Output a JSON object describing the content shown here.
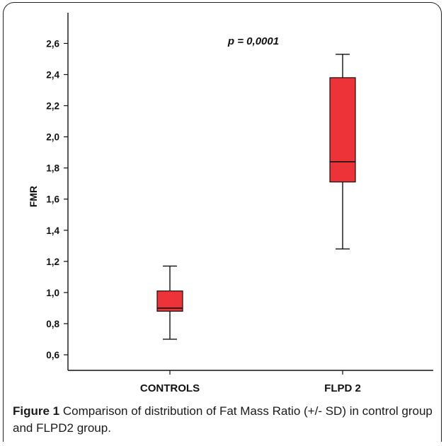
{
  "chart_data": {
    "type": "box",
    "ylabel": "FMR",
    "ylim": [
      0.5,
      2.72
    ],
    "yticks": [
      "0,6",
      "0,8",
      "1,0",
      "1,2",
      "1,4",
      "1,6",
      "1,8",
      "2,0",
      "2,2",
      "2,4",
      "2,6"
    ],
    "ytick_values": [
      0.6,
      0.8,
      1.0,
      1.2,
      1.4,
      1.6,
      1.8,
      2.0,
      2.2,
      2.4,
      2.6
    ],
    "categories": [
      "CONTROLS",
      "FLPD 2"
    ],
    "boxes": [
      {
        "category": "CONTROLS",
        "whisker_low": 0.7,
        "q1": 0.88,
        "median": 0.9,
        "q3": 1.01,
        "whisker_high": 1.17
      },
      {
        "category": "FLPD 2",
        "whisker_low": 1.28,
        "q1": 1.71,
        "median": 1.84,
        "q3": 2.38,
        "whisker_high": 2.53
      }
    ],
    "annotation": "p = 0,0001",
    "box_color": "#ee3338"
  },
  "caption": {
    "label": "Figure 1",
    "text": "Comparison of distribution of Fat Mass Ratio (+/- SD) in control group and FLPD2 group."
  }
}
